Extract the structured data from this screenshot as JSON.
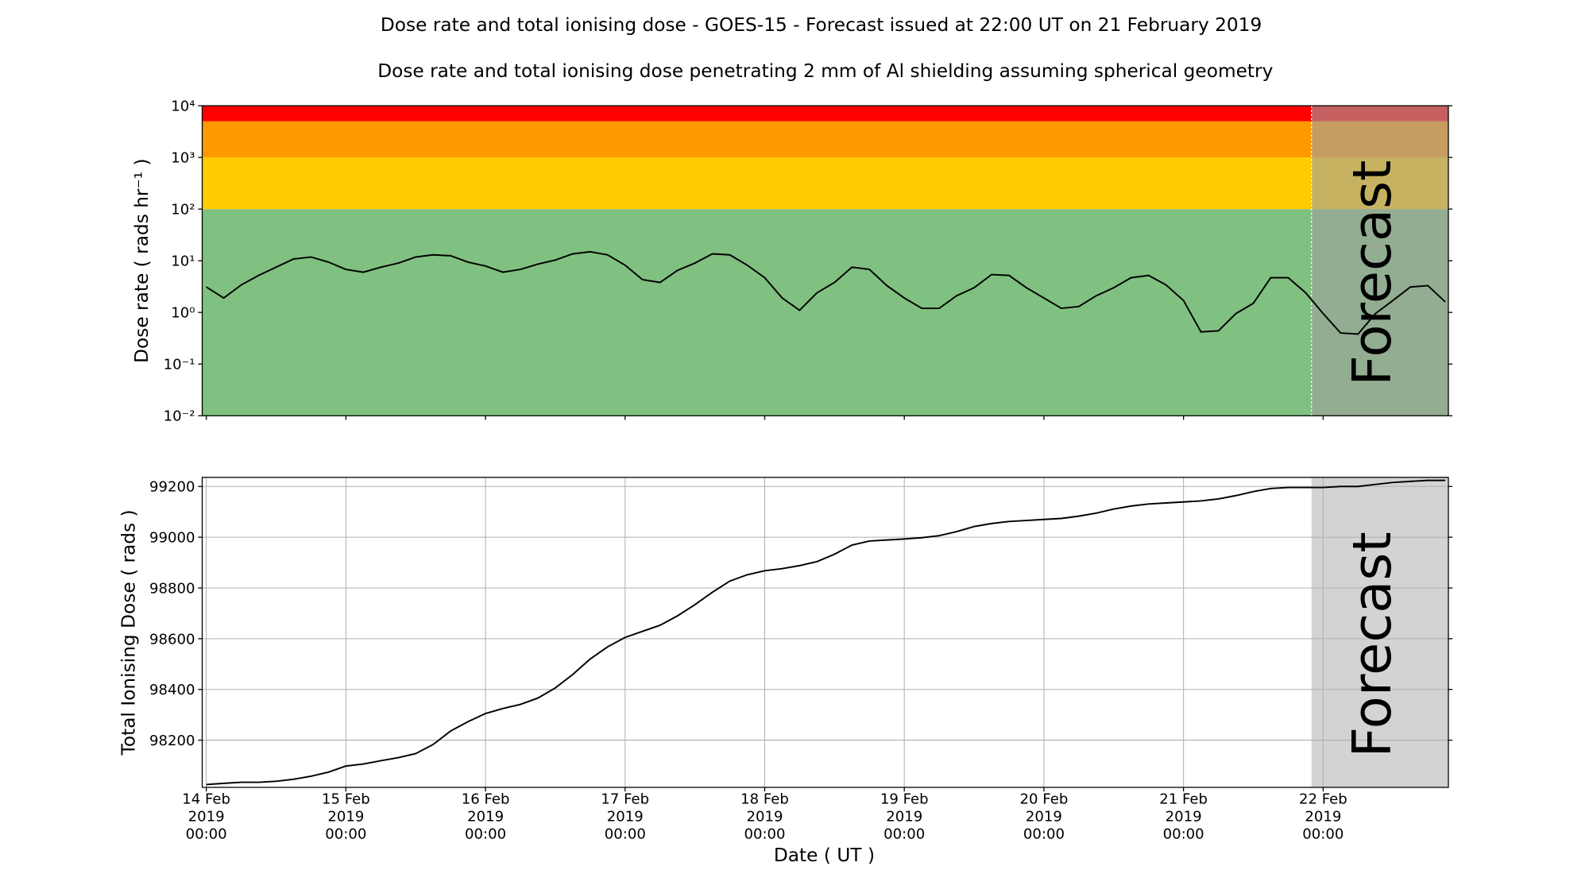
{
  "chart_data": [
    {
      "type": "line",
      "title": "Dose rate and total ionising dose - GOES-15 - Forecast issued at 22:00 UT on 21 February 2019",
      "subtitle": "Dose rate and total ionising dose penetrating 2 mm of Al shielding assuming spherical geometry",
      "y_label": "Dose rate ( rads hr⁻¹ )",
      "annotation": "Forecast",
      "log_scale": true,
      "grid": false,
      "color": "#000000",
      "forecast_start": "2019-02-21 22:00",
      "forecast_color": "rgba(160,160,160,0.6)",
      "bands": [
        {
          "from": 0.01,
          "to": 100,
          "color": "#80c080"
        },
        {
          "from": 100,
          "to": 1000,
          "color": "#ffcc00"
        },
        {
          "from": 1000,
          "to": 5000,
          "color": "#ff9900"
        },
        {
          "from": 5000,
          "to": 10000,
          "color": "#ff0000"
        }
      ],
      "xlim": [
        "2019-02-13 23:18",
        "2019-02-22 21:32"
      ],
      "xticks": [
        "2019-02-14 00:00",
        "2019-02-15 00:00",
        "2019-02-16 00:00",
        "2019-02-17 00:00",
        "2019-02-18 00:00",
        "2019-02-19 00:00",
        "2019-02-20 00:00",
        "2019-02-21 00:00",
        "2019-02-22 00:00"
      ],
      "ylim": [
        0.01,
        10000
      ],
      "yticks": [
        {
          "value": 0.01,
          "label": "10⁻²"
        },
        {
          "value": 0.1,
          "label": "10⁻¹"
        },
        {
          "value": 1,
          "label": "10⁰"
        },
        {
          "value": 10,
          "label": "10¹"
        },
        {
          "value": 100,
          "label": "10²"
        },
        {
          "value": 1000,
          "label": "10³"
        },
        {
          "value": 10000,
          "label": "10⁴"
        }
      ],
      "x": [
        "2019-02-14 00:00",
        "2019-02-14 03:00",
        "2019-02-14 06:00",
        "2019-02-14 09:00",
        "2019-02-14 12:00",
        "2019-02-14 15:00",
        "2019-02-14 18:00",
        "2019-02-14 21:00",
        "2019-02-15 00:00",
        "2019-02-15 03:00",
        "2019-02-15 06:00",
        "2019-02-15 09:00",
        "2019-02-15 12:00",
        "2019-02-15 15:00",
        "2019-02-15 18:00",
        "2019-02-15 21:00",
        "2019-02-16 00:00",
        "2019-02-16 03:00",
        "2019-02-16 06:00",
        "2019-02-16 09:00",
        "2019-02-16 12:00",
        "2019-02-16 15:00",
        "2019-02-16 18:00",
        "2019-02-16 21:00",
        "2019-02-17 00:00",
        "2019-02-17 03:00",
        "2019-02-17 06:00",
        "2019-02-17 09:00",
        "2019-02-17 12:00",
        "2019-02-17 15:00",
        "2019-02-17 18:00",
        "2019-02-17 21:00",
        "2019-02-18 00:00",
        "2019-02-18 03:00",
        "2019-02-18 06:00",
        "2019-02-18 09:00",
        "2019-02-18 12:00",
        "2019-02-18 15:00",
        "2019-02-18 18:00",
        "2019-02-18 21:00",
        "2019-02-19 00:00",
        "2019-02-19 03:00",
        "2019-02-19 06:00",
        "2019-02-19 09:00",
        "2019-02-19 12:00",
        "2019-02-19 15:00",
        "2019-02-19 18:00",
        "2019-02-19 21:00",
        "2019-02-20 00:00",
        "2019-02-20 03:00",
        "2019-02-20 06:00",
        "2019-02-20 09:00",
        "2019-02-20 12:00",
        "2019-02-20 15:00",
        "2019-02-20 18:00",
        "2019-02-20 21:00",
        "2019-02-21 00:00",
        "2019-02-21 03:00",
        "2019-02-21 06:00",
        "2019-02-21 09:00",
        "2019-02-21 12:00",
        "2019-02-21 15:00",
        "2019-02-21 18:00",
        "2019-02-21 21:00",
        "2019-02-22 00:00",
        "2019-02-22 03:00",
        "2019-02-22 06:00",
        "2019-02-22 09:00",
        "2019-02-22 12:00",
        "2019-02-22 15:00",
        "2019-02-22 18:00",
        "2019-02-22 21:00"
      ],
      "values": [
        3.1,
        1.9,
        3.4,
        5.2,
        7.5,
        10.8,
        11.8,
        9.4,
        6.8,
        6.0,
        7.5,
        9.0,
        11.8,
        13,
        12.5,
        9.4,
        7.9,
        6.0,
        6.8,
        8.6,
        10.3,
        13.6,
        14.9,
        13,
        8.2,
        4.3,
        3.8,
        6.5,
        9,
        13.6,
        13,
        8.2,
        4.7,
        1.9,
        1.1,
        2.4,
        3.8,
        7.5,
        6.8,
        3.3,
        1.9,
        1.2,
        1.2,
        2.1,
        3.0,
        5.4,
        5.2,
        3.0,
        1.9,
        1.2,
        1.3,
        2.1,
        3.0,
        4.7,
        5.2,
        3.4,
        1.7,
        0.42,
        0.44,
        0.95,
        1.5,
        4.7,
        4.7,
        2.4,
        0.95,
        0.4,
        0.38,
        0.95,
        1.7,
        3.1,
        3.3,
        1.6
      ]
    },
    {
      "type": "line",
      "y_label": "Total Ionising Dose ( rads )",
      "x_label": "Date ( UT )",
      "annotation": "Forecast",
      "log_scale": false,
      "grid": true,
      "color": "#000000",
      "forecast_start": "2019-02-21 22:00",
      "forecast_color": "#d3d3d3",
      "xlim": [
        "2019-02-13 23:18",
        "2019-02-22 21:32"
      ],
      "xticks": [
        {
          "value": "2019-02-14 00:00",
          "label": "14 Feb\n2019\n00:00"
        },
        {
          "value": "2019-02-15 00:00",
          "label": "15 Feb\n2019\n00:00"
        },
        {
          "value": "2019-02-16 00:00",
          "label": "16 Feb\n2019\n00:00"
        },
        {
          "value": "2019-02-17 00:00",
          "label": "17 Feb\n2019\n00:00"
        },
        {
          "value": "2019-02-18 00:00",
          "label": "18 Feb\n2019\n00:00"
        },
        {
          "value": "2019-02-19 00:00",
          "label": "19 Feb\n2019\n00:00"
        },
        {
          "value": "2019-02-20 00:00",
          "label": "20 Feb\n2019\n00:00"
        },
        {
          "value": "2019-02-21 00:00",
          "label": "21 Feb\n2019\n00:00"
        },
        {
          "value": "2019-02-22 00:00",
          "label": "22 Feb\n2019\n00:00"
        }
      ],
      "ylim": [
        98014,
        99236
      ],
      "yticks": [
        98200,
        98400,
        98600,
        98800,
        99000,
        99200
      ],
      "x": [
        "2019-02-14 00:00",
        "2019-02-14 03:00",
        "2019-02-14 06:00",
        "2019-02-14 09:00",
        "2019-02-14 12:00",
        "2019-02-14 15:00",
        "2019-02-14 18:00",
        "2019-02-14 21:00",
        "2019-02-15 00:00",
        "2019-02-15 03:00",
        "2019-02-15 06:00",
        "2019-02-15 09:00",
        "2019-02-15 12:00",
        "2019-02-15 15:00",
        "2019-02-15 18:00",
        "2019-02-15 21:00",
        "2019-02-16 00:00",
        "2019-02-16 03:00",
        "2019-02-16 06:00",
        "2019-02-16 09:00",
        "2019-02-16 12:00",
        "2019-02-16 15:00",
        "2019-02-16 18:00",
        "2019-02-16 21:00",
        "2019-02-17 00:00",
        "2019-02-17 03:00",
        "2019-02-17 06:00",
        "2019-02-17 09:00",
        "2019-02-17 12:00",
        "2019-02-17 15:00",
        "2019-02-17 18:00",
        "2019-02-17 21:00",
        "2019-02-18 00:00",
        "2019-02-18 03:00",
        "2019-02-18 06:00",
        "2019-02-18 09:00",
        "2019-02-18 12:00",
        "2019-02-18 15:00",
        "2019-02-18 18:00",
        "2019-02-18 21:00",
        "2019-02-19 00:00",
        "2019-02-19 03:00",
        "2019-02-19 06:00",
        "2019-02-19 09:00",
        "2019-02-19 12:00",
        "2019-02-19 15:00",
        "2019-02-19 18:00",
        "2019-02-19 21:00",
        "2019-02-20 00:00",
        "2019-02-20 03:00",
        "2019-02-20 06:00",
        "2019-02-20 09:00",
        "2019-02-20 12:00",
        "2019-02-20 15:00",
        "2019-02-20 18:00",
        "2019-02-20 21:00",
        "2019-02-21 00:00",
        "2019-02-21 03:00",
        "2019-02-21 06:00",
        "2019-02-21 09:00",
        "2019-02-21 12:00",
        "2019-02-21 15:00",
        "2019-02-21 18:00",
        "2019-02-21 21:00",
        "2019-02-22 00:00",
        "2019-02-22 03:00",
        "2019-02-22 06:00",
        "2019-02-22 09:00",
        "2019-02-22 12:00",
        "2019-02-22 15:00",
        "2019-02-22 18:00",
        "2019-02-22 21:00"
      ],
      "values": [
        98025,
        98030,
        98034,
        98034,
        98038,
        98046,
        98058,
        98074,
        98098,
        98106,
        98119,
        98131,
        98147,
        98183,
        98236,
        98273,
        98305,
        98325,
        98341,
        98366,
        98406,
        98459,
        98520,
        98568,
        98605,
        98629,
        98653,
        98690,
        98734,
        98783,
        98827,
        98852,
        98868,
        98876,
        98888,
        98904,
        98933,
        98969,
        98985,
        98989,
        98993,
        98998,
        99006,
        99022,
        99042,
        99054,
        99062,
        99066,
        99070,
        99074,
        99083,
        99095,
        99111,
        99123,
        99131,
        99135,
        99139,
        99143,
        99151,
        99164,
        99180,
        99192,
        99196,
        99196,
        99196,
        99200,
        99200,
        99208,
        99216,
        99220,
        99224,
        99224
      ]
    }
  ]
}
